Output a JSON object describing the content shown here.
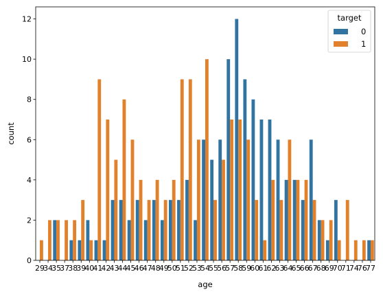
{
  "chart_data": {
    "type": "bar",
    "xlabel": "age",
    "ylabel": "count",
    "ylim": [
      0,
      12.6
    ],
    "yticks": [
      0,
      2,
      4,
      6,
      8,
      10,
      12
    ],
    "grid": false,
    "legend": {
      "title": "target",
      "position": "top-right"
    },
    "categories": [
      "29",
      "34",
      "35",
      "37",
      "38",
      "39",
      "40",
      "41",
      "42",
      "43",
      "44",
      "45",
      "46",
      "47",
      "48",
      "49",
      "50",
      "51",
      "52",
      "53",
      "54",
      "55",
      "56",
      "57",
      "58",
      "59",
      "60",
      "61",
      "62",
      "63",
      "64",
      "65",
      "66",
      "67",
      "68",
      "69",
      "70",
      "71",
      "74",
      "76",
      "77"
    ],
    "series": [
      {
        "name": "0",
        "color": "#3274a1",
        "values": [
          0,
          0,
          2,
          0,
          1,
          1,
          2,
          1,
          1,
          3,
          3,
          2,
          3,
          2,
          3,
          2,
          3,
          3,
          4,
          2,
          6,
          5,
          6,
          10,
          12,
          9,
          8,
          7,
          7,
          6,
          4,
          4,
          3,
          6,
          2,
          1,
          3,
          0,
          0,
          0,
          1
        ]
      },
      {
        "name": "1",
        "color": "#e1812c",
        "values": [
          1,
          2,
          2,
          2,
          2,
          3,
          1,
          9,
          7,
          5,
          8,
          6,
          4,
          3,
          4,
          3,
          4,
          9,
          9,
          6,
          10,
          3,
          5,
          7,
          7,
          6,
          3,
          1,
          4,
          3,
          6,
          4,
          4,
          3,
          2,
          2,
          1,
          3,
          1,
          1,
          1
        ]
      }
    ]
  }
}
